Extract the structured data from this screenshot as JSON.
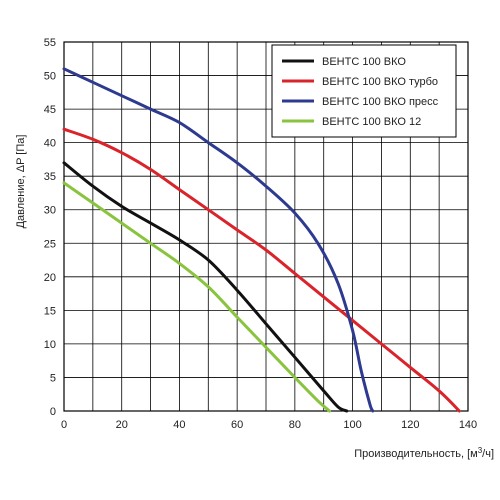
{
  "chart_data": {
    "type": "line",
    "xlabel_main": "Производительность, [м",
    "xlabel_sup": "3",
    "xlabel_tail": "/ч]",
    "ylabel": "Давление, ΔP [Па]",
    "xlim": [
      0,
      140
    ],
    "ylim": [
      0,
      55
    ],
    "x_ticks": [
      "0",
      "20",
      "40",
      "60",
      "80",
      "100",
      "120",
      "140"
    ],
    "y_ticks": [
      "0",
      "5",
      "10",
      "15",
      "20",
      "25",
      "30",
      "35",
      "40",
      "45",
      "50",
      "55"
    ],
    "x_tick_values": [
      0,
      20,
      40,
      60,
      80,
      100,
      120,
      140
    ],
    "y_tick_values": [
      0,
      5,
      10,
      15,
      20,
      25,
      30,
      35,
      40,
      45,
      50,
      55
    ],
    "grid": true,
    "x_minor_step": 10,
    "legend_position": "top-right",
    "series": [
      {
        "name": "ВЕНТС 100 ВКО",
        "color": "#111111",
        "points": [
          [
            0,
            37
          ],
          [
            10,
            33.5
          ],
          [
            20,
            30.5
          ],
          [
            30,
            28
          ],
          [
            40,
            25.5
          ],
          [
            50,
            22.5
          ],
          [
            60,
            18
          ],
          [
            70,
            13
          ],
          [
            80,
            8
          ],
          [
            90,
            3
          ],
          [
            95,
            0.6
          ],
          [
            98,
            0
          ]
        ]
      },
      {
        "name": "ВЕНТС 100 ВКО турбо",
        "color": "#d9242b",
        "points": [
          [
            0,
            42
          ],
          [
            10,
            40.5
          ],
          [
            20,
            38.5
          ],
          [
            30,
            36
          ],
          [
            40,
            33
          ],
          [
            50,
            30
          ],
          [
            60,
            27
          ],
          [
            70,
            24
          ],
          [
            80,
            20.5
          ],
          [
            90,
            17
          ],
          [
            100,
            13.5
          ],
          [
            110,
            10
          ],
          [
            120,
            6.5
          ],
          [
            130,
            3
          ],
          [
            137,
            0
          ]
        ]
      },
      {
        "name": "ВЕНТС 100 ВКО пресс",
        "color": "#2e3a8f",
        "points": [
          [
            0,
            51
          ],
          [
            10,
            49
          ],
          [
            20,
            47
          ],
          [
            30,
            45
          ],
          [
            40,
            43
          ],
          [
            50,
            40
          ],
          [
            60,
            37
          ],
          [
            70,
            33.5
          ],
          [
            80,
            29.5
          ],
          [
            88,
            25
          ],
          [
            95,
            19
          ],
          [
            100,
            12
          ],
          [
            103,
            6
          ],
          [
            106,
            1
          ],
          [
            107,
            0
          ]
        ]
      },
      {
        "name": "ВЕНТС 100 ВКО 12",
        "color": "#8ac43f",
        "points": [
          [
            0,
            34
          ],
          [
            10,
            31
          ],
          [
            20,
            28
          ],
          [
            30,
            25
          ],
          [
            40,
            22
          ],
          [
            50,
            18.5
          ],
          [
            60,
            14
          ],
          [
            70,
            9.5
          ],
          [
            80,
            5
          ],
          [
            88,
            1.5
          ],
          [
            92,
            0
          ]
        ]
      }
    ]
  }
}
